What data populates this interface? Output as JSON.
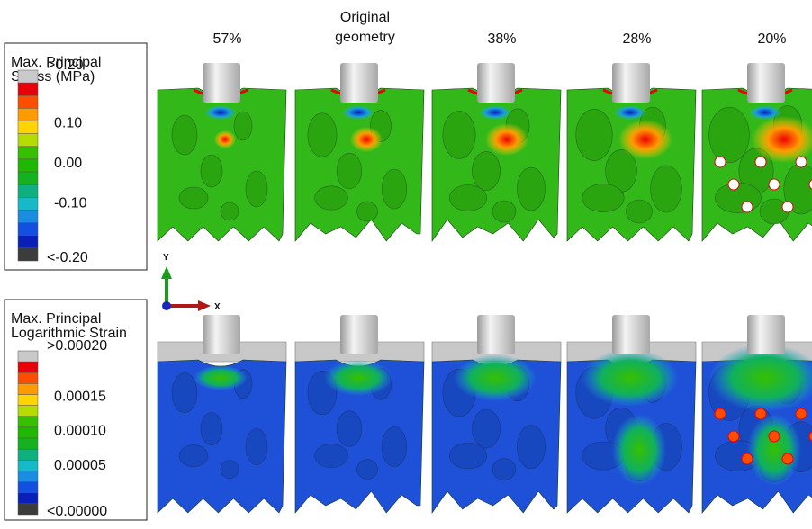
{
  "columns": [
    "57%",
    "Original geometry",
    "38%",
    "28%",
    "20%"
  ],
  "legends": [
    {
      "title": "Max. Principal Stress (MPa)",
      "labels": [
        ">0.20",
        "0.10",
        "0.00",
        "-0.10",
        "<-0.20"
      ]
    },
    {
      "title": "Max. Principal Logarithmic Strain",
      "labels": [
        ">0.00020",
        "0.00015",
        "0.00010",
        "0.00005",
        "<0.00000"
      ]
    }
  ],
  "axes": {
    "y": "Y",
    "x": "X"
  }
}
